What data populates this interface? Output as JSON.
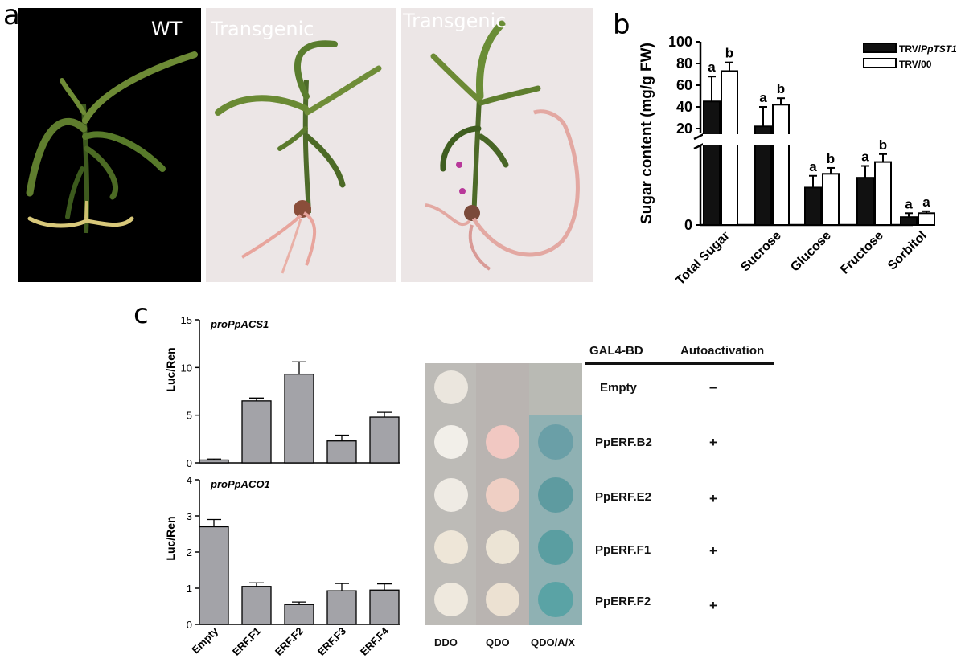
{
  "panels": {
    "a": "a",
    "b": "b",
    "c": "c"
  },
  "photos": {
    "wt_label": "WT",
    "transgenic_label_1": "Transgenic",
    "transgenic_label_2": "Transgenic"
  },
  "colors": {
    "bar_dark": "#111111",
    "bar_light": "#ffffff",
    "bar_gray": "#a3a3a8",
    "photo_dark_bg": "#000000",
    "photo_light_bg": "#ece6e6"
  },
  "chart_data": [
    {
      "id": "b",
      "type": "bar",
      "ylabel": "Sugar content (mg/g FW)",
      "categories": [
        "Total Sugar",
        "Sucrose",
        "Glucose",
        "Fructose",
        "Sorbitol"
      ],
      "series": [
        {
          "name": "TRV/PpTST1",
          "name_prefix": "TRV/",
          "name_italic": "PpTST1",
          "color": "#111111",
          "values": [
            45,
            22,
            9.5,
            12,
            2
          ],
          "errors": [
            23,
            18,
            3,
            3,
            1
          ],
          "letters": [
            "a",
            "a",
            "a",
            "a",
            "a"
          ]
        },
        {
          "name": "TRV/00",
          "color": "#ffffff",
          "values": [
            73,
            42,
            13,
            16,
            3
          ],
          "errors": [
            8,
            6,
            1.5,
            2,
            0.5
          ],
          "letters": [
            "b",
            "b",
            "b",
            "b",
            "a"
          ]
        }
      ],
      "y_ticks": [
        "100",
        "80",
        "60",
        "40",
        "20",
        "0"
      ],
      "axis_break": true,
      "legend_position": "top-right"
    },
    {
      "id": "c-top",
      "type": "bar",
      "title": "proPpACS1",
      "ylabel": "Luc/Ren",
      "categories": [
        "Empty",
        "ERF.F1",
        "ERF.F2",
        "ERF.F3",
        "ERF.F4"
      ],
      "values": [
        0.3,
        6.5,
        9.3,
        2.3,
        4.8
      ],
      "errors": [
        0.1,
        0.3,
        1.3,
        0.6,
        0.5
      ],
      "ylim": [
        0,
        15
      ],
      "y_ticks": [
        "15",
        "10",
        "5",
        "0"
      ]
    },
    {
      "id": "c-bottom",
      "type": "bar",
      "title": "proPpACO1",
      "ylabel": "Luc/Ren",
      "categories": [
        "Empty",
        "ERF.F1",
        "ERF.F2",
        "ERF.F3",
        "ERF.F4"
      ],
      "values": [
        2.7,
        1.05,
        0.55,
        0.93,
        0.95
      ],
      "errors": [
        0.2,
        0.1,
        0.07,
        0.2,
        0.17
      ],
      "ylim": [
        0,
        4
      ],
      "y_ticks": [
        "4",
        "3",
        "2",
        "1",
        "0"
      ]
    }
  ],
  "yeast": {
    "conditions": [
      "DDO",
      "QDO",
      "QDO/A/X"
    ],
    "table_headers": [
      "GAL4-BD",
      "Autoactivation"
    ],
    "rows": [
      {
        "construct": "Empty",
        "autoactivation": "–"
      },
      {
        "construct": "PpERF.B2",
        "autoactivation": "+"
      },
      {
        "construct": "PpERF.E2",
        "autoactivation": "+"
      },
      {
        "construct": "PpERF.F1",
        "autoactivation": "+"
      },
      {
        "construct": "PpERF.F2",
        "autoactivation": "+"
      }
    ]
  }
}
